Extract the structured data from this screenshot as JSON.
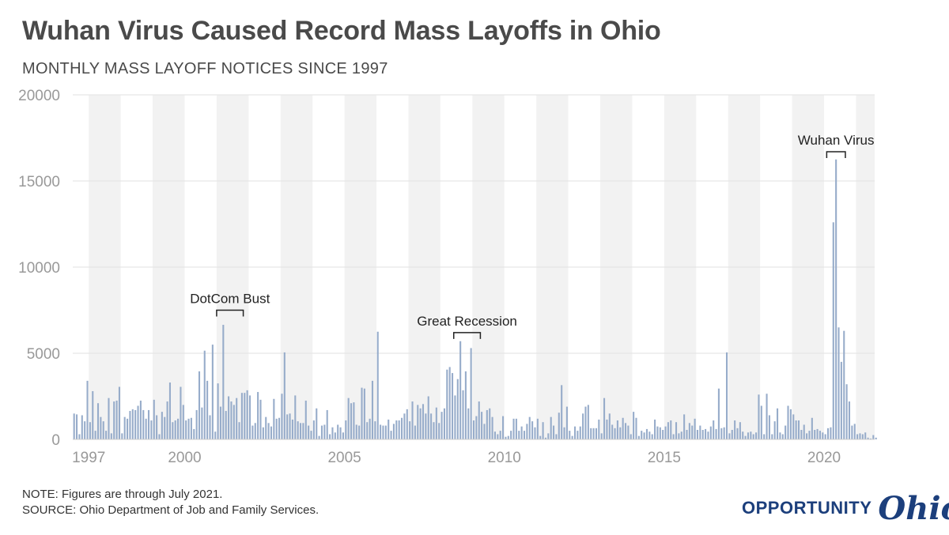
{
  "header": {
    "title": "Wuhan Virus Caused Record Mass Layoffs in Ohio",
    "subtitle": "MONTHLY MASS LAYOFF NOTICES SINCE 1997"
  },
  "footer": {
    "note": "NOTE: Figures are through July 2021.",
    "source": "SOURCE: Ohio Department of Job and Family Services."
  },
  "logo": {
    "word": "OPPORTUNITY",
    "script": "Ohio"
  },
  "colors": {
    "bar": "#97acca",
    "band": "#f2f2f2",
    "grid": "#e2e2e2",
    "axis_text": "#999999",
    "logo": "#1c3f7c"
  },
  "chart_data": {
    "type": "bar",
    "title": "Wuhan Virus Caused Record Mass Layoffs in Ohio",
    "subtitle": "MONTHLY MASS LAYOFF NOTICES SINCE 1997",
    "x_start": "1996-07",
    "x_end": "2021-07",
    "ylim": [
      0,
      20000
    ],
    "yticks": [
      0,
      5000,
      10000,
      15000,
      20000
    ],
    "xtick_labels": [
      "1997",
      "2000",
      "2005",
      "2010",
      "2015",
      "2020"
    ],
    "xtick_dates": [
      "1997-01",
      "2000-01",
      "2005-01",
      "2010-01",
      "2015-01",
      "2020-01"
    ],
    "grid": true,
    "alternating_year_bands": true,
    "annotations": [
      {
        "text": "DotCom Bust",
        "from": "2001-01",
        "to": "2001-10",
        "at": 7500
      },
      {
        "text": "Great Recession",
        "from": "2008-06",
        "to": "2009-03",
        "at": 6200
      },
      {
        "text": "Wuhan Virus",
        "from": "2020-02",
        "to": "2020-08",
        "at": 16700
      }
    ],
    "values": [
      1500,
      1450,
      300,
      1400,
      1050,
      3400,
      1000,
      2800,
      500,
      2100,
      1300,
      1050,
      500,
      2400,
      350,
      2200,
      2250,
      3050,
      350,
      1300,
      1200,
      1650,
      1750,
      1700,
      1950,
      2250,
      1700,
      1200,
      1700,
      1100,
      2300,
      1400,
      300,
      1600,
      1300,
      2200,
      3300,
      1000,
      1100,
      1200,
      3050,
      2000,
      1100,
      1200,
      1250,
      600,
      1700,
      3950,
      1850,
      5150,
      3400,
      1400,
      5500,
      450,
      3250,
      1900,
      6650,
      1650,
      2500,
      2200,
      2000,
      2400,
      1000,
      2700,
      2700,
      2850,
      2550,
      800,
      950,
      2750,
      2300,
      700,
      1300,
      950,
      750,
      2350,
      1200,
      1250,
      2650,
      5050,
      1450,
      1500,
      1150,
      2550,
      1050,
      950,
      950,
      2250,
      800,
      500,
      1100,
      1800,
      200,
      800,
      850,
      1700,
      300,
      700,
      400,
      850,
      700,
      400,
      1100,
      2400,
      2100,
      2150,
      850,
      800,
      3000,
      2950,
      1000,
      1200,
      3400,
      1050,
      6250,
      850,
      800,
      800,
      1150,
      500,
      900,
      1100,
      1100,
      1250,
      1500,
      1750,
      1050,
      2200,
      800,
      2000,
      1800,
      2050,
      1500,
      2500,
      1500,
      1000,
      1850,
      950,
      1600,
      1800,
      4050,
      4200,
      3850,
      2550,
      3500,
      5700,
      2850,
      3950,
      1800,
      5300,
      1100,
      1350,
      2200,
      1600,
      900,
      1700,
      1800,
      1300,
      450,
      300,
      500,
      1350,
      150,
      200,
      500,
      1200,
      1200,
      500,
      750,
      500,
      900,
      1300,
      1050,
      700,
      1200,
      200,
      1000,
      100,
      350,
      1300,
      800,
      300,
      1550,
      3150,
      700,
      1900,
      500,
      200,
      750,
      500,
      750,
      1500,
      1900,
      2000,
      650,
      650,
      650,
      1150,
      350,
      2400,
      1150,
      1500,
      850,
      650,
      1100,
      700,
      1250,
      950,
      800,
      300,
      1600,
      1250,
      200,
      500,
      400,
      600,
      450,
      300,
      1150,
      750,
      700,
      550,
      750,
      1000,
      1100,
      300,
      1000,
      350,
      450,
      1450,
      550,
      950,
      800,
      1200,
      550,
      800,
      550,
      600,
      450,
      750,
      1100,
      600,
      2950,
      650,
      700,
      5050,
      350,
      550,
      1100,
      650,
      1000,
      450,
      200,
      400,
      450,
      300,
      400,
      2600,
      1950,
      300,
      2650,
      1400,
      300,
      1050,
      1800,
      400,
      300,
      800,
      1950,
      1750,
      1450,
      1100,
      1100,
      550,
      850,
      350,
      500,
      1250,
      550,
      600,
      500,
      400,
      300,
      650,
      700,
      12600,
      16250,
      6500,
      4500,
      6300,
      3200,
      2200,
      800,
      900,
      300,
      350,
      300,
      400,
      100,
      50,
      250,
      100
    ]
  }
}
